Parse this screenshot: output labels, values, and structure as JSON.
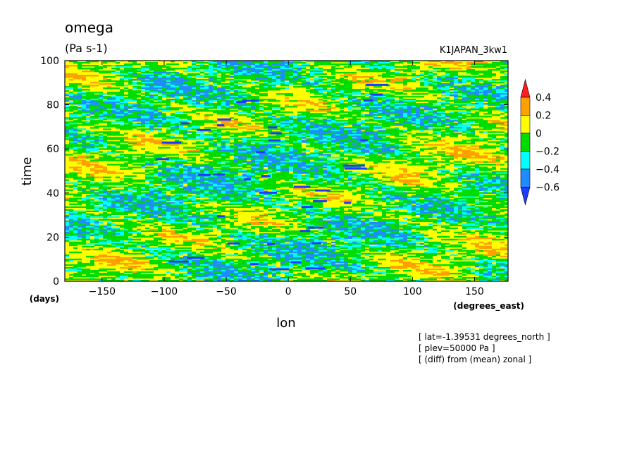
{
  "chart_data": {
    "type": "heatmap",
    "title": "omega",
    "units": "(Pa s-1)",
    "run_label": "K1JAPAN_3kw1",
    "xlabel": "lon",
    "xunits": "(degrees_east)",
    "ylabel": "time",
    "yunits": "(days)",
    "xlim": [
      -180,
      177
    ],
    "ylim": [
      0,
      100
    ],
    "xticks": [
      -150,
      -100,
      -50,
      0,
      50,
      100,
      150
    ],
    "yticks": [
      0,
      20,
      40,
      60,
      80,
      100
    ],
    "colorbar": {
      "levels": [
        0.4,
        0.2,
        0,
        -0.2,
        -0.4,
        -0.6
      ],
      "labels": [
        "0.4",
        "0.2",
        "0",
        "-0.2",
        "-0.4",
        "-0.6"
      ],
      "colors": [
        "#ff1e1e",
        "#ffa000",
        "#ffff00",
        "#00dc00",
        "#00ffff",
        "#1e8cff",
        "#1e3cff"
      ],
      "extend": "both"
    },
    "annotations": [
      "[ lat=-1.39531 degrees_north ]",
      "[ plev=50000 Pa ]",
      "[ (diff) from (mean) zonal ]"
    ]
  }
}
